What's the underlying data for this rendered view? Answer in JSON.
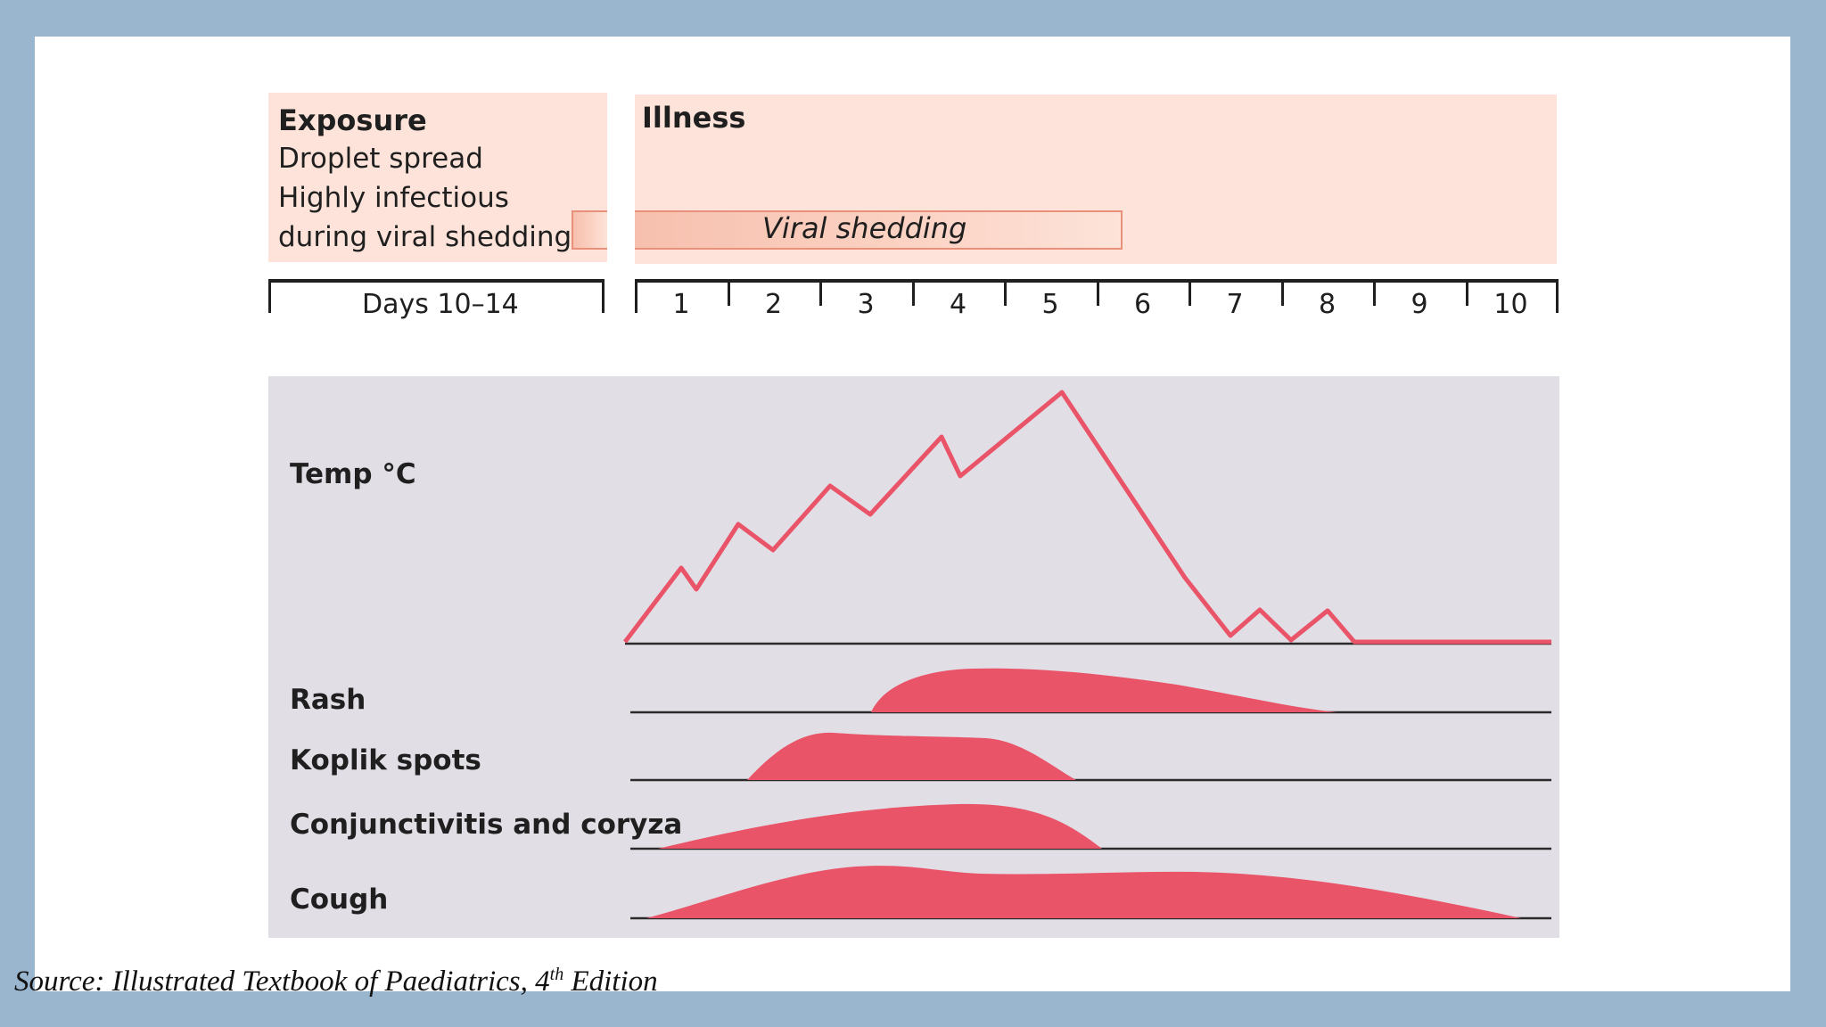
{
  "exposure": {
    "title": "Exposure",
    "lines": [
      "Droplet spread",
      "Highly infectious",
      "during viral shedding"
    ]
  },
  "illness": {
    "title": "Illness"
  },
  "viral_shedding": {
    "label": "Viral shedding"
  },
  "timeline": {
    "incubation_label": "Days 10–14",
    "days": [
      "1",
      "2",
      "3",
      "4",
      "5",
      "6",
      "7",
      "8",
      "9",
      "10"
    ]
  },
  "rows": {
    "temp": "Temp °C",
    "rash": "Rash",
    "koplik": "Koplik spots",
    "conjunctivitis": "Conjunctivitis and coryza",
    "cough": "Cough"
  },
  "colors": {
    "symptom_fill": "#e95468",
    "temp_line": "#e95468",
    "top_panel": "#fde3d9",
    "chart_bg": "#e2dee6"
  },
  "source": {
    "prefix": "Source: Illustrated Textbook of Paediatrics, 4",
    "sup": "th",
    "suffix": " Edition"
  }
}
